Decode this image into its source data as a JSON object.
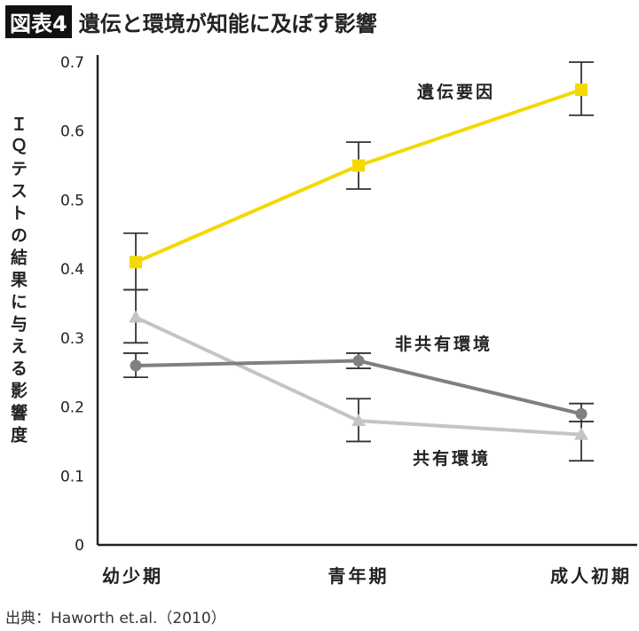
{
  "title": {
    "badge": "図表4",
    "text": "遺伝と環境が知能に及ぼす影響"
  },
  "source": "出典：Haworth et.al.（2010）",
  "chart_data": {
    "type": "line",
    "title": "遺伝と環境が知能に及ぼす影響",
    "ylabel": "ＩＱテストの結果に与える影響度",
    "xlabel": "",
    "categories": [
      "幼少期",
      "青年期",
      "成人初期"
    ],
    "ylim": [
      0,
      0.7
    ],
    "yticks": [
      "0",
      "0.1",
      "0.2",
      "0.3",
      "0.4",
      "0.5",
      "0.6",
      "0.7"
    ],
    "grid": false,
    "series": [
      {
        "name": "遺伝要因",
        "color": "#f5d800",
        "marker": "square",
        "values": [
          0.41,
          0.55,
          0.66
        ],
        "err_low": [
          0.37,
          0.516,
          0.623
        ],
        "err_high": [
          0.452,
          0.584,
          0.7
        ]
      },
      {
        "name": "非共有環境",
        "color": "#808080",
        "marker": "circle",
        "values": [
          0.26,
          0.267,
          0.19
        ],
        "err_low": [
          0.243,
          0.256,
          0.179
        ],
        "err_high": [
          0.278,
          0.278,
          0.205
        ]
      },
      {
        "name": "共有環境",
        "color": "#c4c4c4",
        "marker": "triangle",
        "values": [
          0.33,
          0.18,
          0.16
        ],
        "err_low": [
          0.293,
          0.15,
          0.122
        ],
        "err_high": [
          0.37,
          0.212,
          0.179
        ]
      }
    ]
  }
}
